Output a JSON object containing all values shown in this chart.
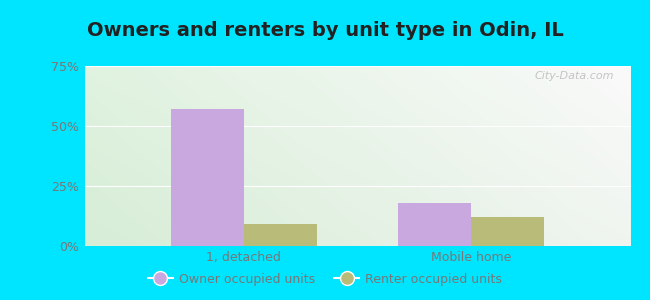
{
  "title": "Owners and renters by unit type in Odin, IL",
  "categories": [
    "1, detached",
    "Mobile home"
  ],
  "owner_values": [
    57,
    18
  ],
  "renter_values": [
    9,
    12
  ],
  "owner_color": "#c9a8e0",
  "renter_color": "#b8bc78",
  "ylim": [
    0,
    75
  ],
  "yticks": [
    0,
    25,
    50,
    75
  ],
  "ytick_labels": [
    "0%",
    "25%",
    "50%",
    "75%"
  ],
  "bg_color_topleft": "#d6eed6",
  "bg_color_topright": "#e8f4f0",
  "bg_color_bottom": "#e0eed8",
  "outer_bg": "#00e5ff",
  "bar_width": 0.32,
  "legend_labels": [
    "Owner occupied units",
    "Renter occupied units"
  ],
  "watermark": "City-Data.com",
  "title_fontsize": 14,
  "axis_label_fontsize": 9,
  "legend_fontsize": 9
}
